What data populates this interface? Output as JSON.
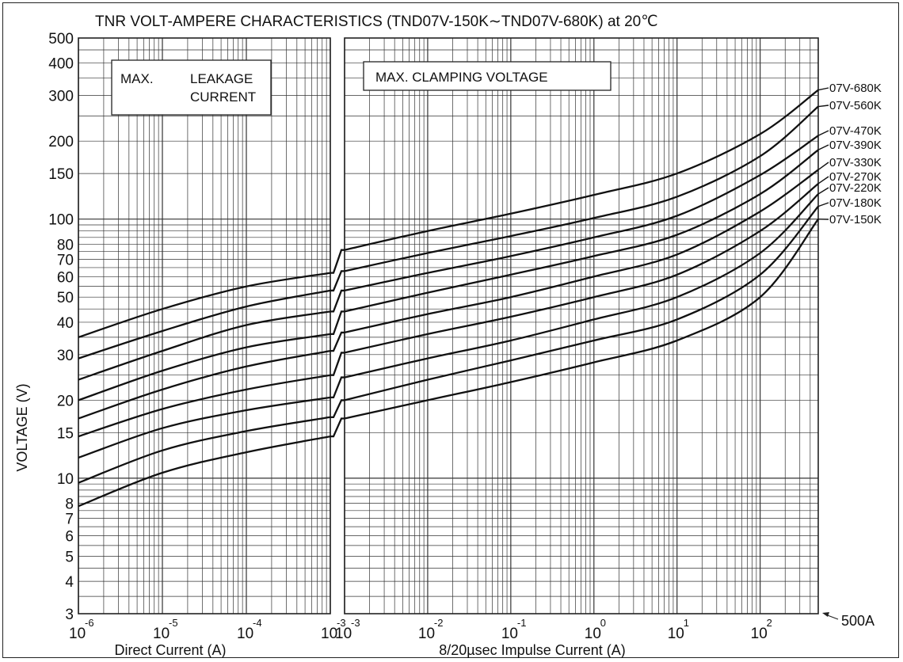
{
  "chart_data": {
    "type": "line",
    "title": "TNR VOLT-AMPERE CHARACTERISTICS (TND07V-150K∼TND07V-680K)  at 20℃",
    "ylabel": "VOLTAGE (V)",
    "y_scale": "log",
    "ylim": [
      3,
      500
    ],
    "y_ticks": [
      3,
      4,
      5,
      6,
      7,
      8,
      10,
      15,
      20,
      30,
      40,
      50,
      60,
      70,
      80,
      100,
      150,
      200,
      300,
      400,
      500
    ],
    "panels": [
      {
        "name": "leakage",
        "box_label_1": "MAX.",
        "box_label_2": "LEAKAGE",
        "box_label_3": "CURRENT",
        "xlabel": "Direct  Current (A)",
        "x_scale": "log",
        "xlim": [
          1e-06,
          0.001
        ],
        "x_tick_exponents": [
          "-6",
          "-5",
          "-4",
          "-3"
        ]
      },
      {
        "name": "clamping",
        "box_label_1": "MAX.  CLAMPING VOLTAGE",
        "xlabel": "8/20µsec  Impulse  Current (A)",
        "x_scale": "log",
        "xlim": [
          0.001,
          500
        ],
        "x_tick_exponents": [
          "-3",
          "-2",
          "-1",
          "0",
          "1",
          "2"
        ],
        "end_marker": "500A"
      }
    ],
    "series": [
      {
        "name": "07V-150K",
        "leakage": {
          "x": [
            1e-06,
            1e-05,
            0.0001,
            0.001
          ],
          "y": [
            7.8,
            10.5,
            12.6,
            14.5
          ]
        },
        "clamping": {
          "x": [
            0.001,
            0.01,
            0.1,
            1,
            10,
            100,
            500
          ],
          "y": [
            17,
            20,
            23.5,
            28,
            34,
            50,
            100
          ]
        }
      },
      {
        "name": "07V-180K",
        "leakage": {
          "x": [
            1e-06,
            1e-05,
            0.0001,
            0.001
          ],
          "y": [
            9.6,
            12.8,
            15.2,
            17.2
          ]
        },
        "clamping": {
          "x": [
            0.001,
            0.01,
            0.1,
            1,
            10,
            100,
            500
          ],
          "y": [
            20,
            24,
            28.5,
            34,
            41,
            61,
            112
          ]
        }
      },
      {
        "name": "07V-220K",
        "leakage": {
          "x": [
            1e-06,
            1e-05,
            0.0001,
            0.001
          ],
          "y": [
            12,
            15.6,
            18.3,
            20.5
          ]
        },
        "clamping": {
          "x": [
            0.001,
            0.01,
            0.1,
            1,
            10,
            100,
            500
          ],
          "y": [
            24.5,
            29,
            34,
            41,
            50,
            74,
            125
          ]
        }
      },
      {
        "name": "07V-270K",
        "leakage": {
          "x": [
            1e-06,
            1e-05,
            0.0001,
            0.001
          ],
          "y": [
            14.5,
            18.5,
            22,
            25
          ]
        },
        "clamping": {
          "x": [
            0.001,
            0.01,
            0.1,
            1,
            10,
            100,
            500
          ],
          "y": [
            30.5,
            36,
            42,
            50,
            61,
            90,
            137
          ]
        }
      },
      {
        "name": "07V-330K",
        "leakage": {
          "x": [
            1e-06,
            1e-05,
            0.0001,
            0.001
          ],
          "y": [
            17,
            22,
            27,
            31
          ]
        },
        "clamping": {
          "x": [
            0.001,
            0.01,
            0.1,
            1,
            10,
            100,
            500
          ],
          "y": [
            36.5,
            43,
            50,
            60,
            73,
            107,
            155
          ]
        }
      },
      {
        "name": "07V-390K",
        "leakage": {
          "x": [
            1e-06,
            1e-05,
            0.0001,
            0.001
          ],
          "y": [
            20,
            26,
            32,
            36
          ]
        },
        "clamping": {
          "x": [
            0.001,
            0.01,
            0.1,
            1,
            10,
            100,
            500
          ],
          "y": [
            44,
            52,
            61,
            72,
            87,
            125,
            185
          ]
        }
      },
      {
        "name": "07V-470K",
        "leakage": {
          "x": [
            1e-06,
            1e-05,
            0.0001,
            0.001
          ],
          "y": [
            24,
            31,
            39,
            44
          ]
        },
        "clamping": {
          "x": [
            0.001,
            0.01,
            0.1,
            1,
            10,
            100,
            500
          ],
          "y": [
            53,
            62,
            72,
            85,
            103,
            148,
            210
          ]
        }
      },
      {
        "name": "07V-560K",
        "leakage": {
          "x": [
            1e-06,
            1e-05,
            0.0001,
            0.001
          ],
          "y": [
            29,
            37,
            46,
            53
          ]
        },
        "clamping": {
          "x": [
            0.001,
            0.01,
            0.1,
            1,
            10,
            100,
            500
          ],
          "y": [
            63,
            74,
            86,
            101,
            122,
            175,
            272
          ]
        }
      },
      {
        "name": "07V-680K",
        "leakage": {
          "x": [
            1e-06,
            1e-05,
            0.0001,
            0.001
          ],
          "y": [
            35,
            45,
            55,
            62
          ]
        },
        "clamping": {
          "x": [
            0.001,
            0.01,
            0.1,
            1,
            10,
            100,
            500
          ],
          "y": [
            76,
            90,
            105,
            124,
            150,
            213,
            315
          ]
        }
      }
    ],
    "grid": true,
    "line_color": "#111111"
  }
}
